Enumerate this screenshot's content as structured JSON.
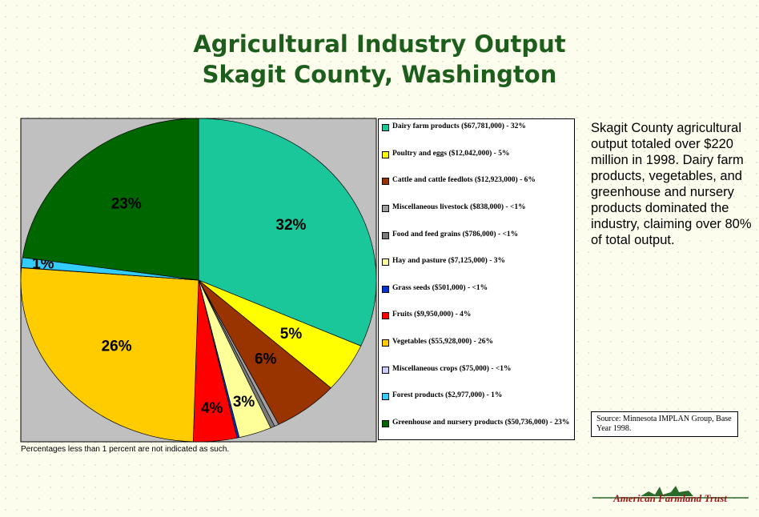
{
  "title": [
    "Agricultural Industry Output",
    "Skagit County, Washington"
  ],
  "chart_data": {
    "type": "pie",
    "categories": [
      "Dairy farm products ($67,781,000) - 32%",
      "Poultry and eggs ($12,042,000) - 5%",
      "Cattle and cattle feedlots ($12,923,000) - 6%",
      "Miscellaneous livestock ($838,000) - <1%",
      "Food and feed grains ($786,000) - <1%",
      "Hay and pasture ($7,125,000) - 3%",
      "Grass seeds ($501,000) - <1%",
      "Fruits ($9,950,000) - 4%",
      "Vegetables ($55,928,000) - 26%",
      "Miscellaneous crops ($75,000) - <1%",
      "Forest products ($2,977,000) - 1%",
      "Greenhouse and nursery products ($50,736,000) - 23%"
    ],
    "values": [
      32,
      5,
      6,
      0.4,
      0.4,
      3,
      0.2,
      4,
      26,
      0.03,
      1,
      23
    ],
    "value_labels": [
      "32%",
      "5%",
      "6%",
      null,
      null,
      "3%",
      null,
      "4%",
      "26%",
      null,
      "1%",
      "23%"
    ],
    "colors": [
      "#19c79b",
      "#ffff00",
      "#993300",
      "#a0a0a0",
      "#7a7a7a",
      "#ffff99",
      "#0033cc",
      "#ff0000",
      "#ffcc00",
      "#ccccff",
      "#33ccff",
      "#006600"
    ],
    "footnote": "Percentages less than 1 percent are not indicated as such."
  },
  "summary": "Skagit County agricultural output totaled over $220 million in 1998.  Dairy farm products, vegetables, and greenhouse and nursery products dominated the industry, claiming over 80% of total output.",
  "source": "Source: Minnesota IMPLAN Group, Base Year 1998.",
  "logo": "American Farmland Trust"
}
